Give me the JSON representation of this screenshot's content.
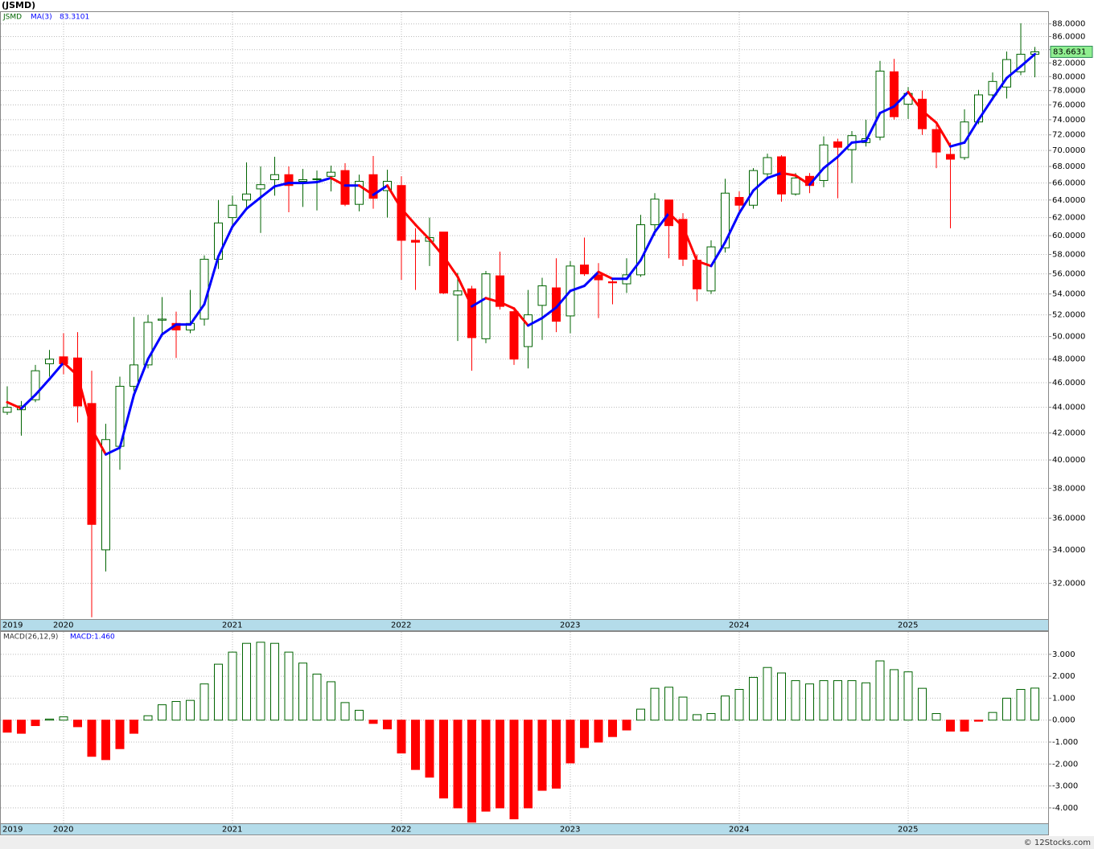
{
  "chart_data": [
    {
      "type": "candlestick",
      "title": "(JSMD)",
      "symbol": "JSMD",
      "categories": [
        "2019",
        null,
        null,
        null,
        "2020",
        null,
        null,
        null,
        null,
        null,
        null,
        null,
        null,
        null,
        null,
        null,
        "2021",
        null,
        null,
        null,
        null,
        null,
        null,
        null,
        null,
        null,
        null,
        null,
        "2022",
        null,
        null,
        null,
        null,
        null,
        null,
        null,
        null,
        null,
        null,
        null,
        "2023",
        null,
        null,
        null,
        null,
        null,
        null,
        null,
        null,
        null,
        null,
        null,
        "2024",
        null,
        null,
        null,
        null,
        null,
        null,
        null,
        null,
        null,
        null,
        null,
        "2025",
        null,
        null,
        null,
        null,
        null,
        null,
        null,
        null,
        null
      ],
      "open": [
        43.6,
        43.8,
        44.6,
        47.6,
        48.2,
        48.1,
        44.3,
        34.0,
        41.0,
        45.7,
        47.5,
        51.5,
        51.2,
        50.6,
        51.6,
        57.5,
        62.0,
        64.0,
        65.3,
        66.4,
        67.0,
        66.2,
        66.4,
        66.8,
        67.5,
        63.5,
        67.0,
        65.1,
        65.7,
        59.5,
        59.4,
        60.4,
        53.9,
        54.5,
        49.8,
        55.8,
        52.3,
        49.1,
        52.9,
        54.6,
        51.9,
        56.9,
        55.9,
        55.2,
        55.0,
        55.9,
        61.2,
        64.0,
        61.8,
        57.4,
        54.3,
        58.7,
        64.3,
        63.4,
        67.1,
        69.2,
        64.7,
        66.8,
        66.3,
        71.1,
        70.1,
        71.0,
        71.7,
        80.7,
        76.1,
        76.8,
        72.7,
        69.5,
        69.1,
        73.7,
        77.4,
        78.5,
        80.7,
        83.3
      ],
      "high": [
        45.7,
        44.5,
        47.5,
        48.8,
        50.3,
        50.4,
        47.0,
        42.7,
        46.5,
        51.8,
        52.0,
        53.7,
        52.3,
        54.4,
        57.9,
        64.0,
        64.5,
        68.5,
        68.0,
        69.2,
        68.0,
        67.7,
        67.5,
        68.1,
        68.4,
        67.0,
        69.3,
        67.6,
        66.8,
        60.8,
        62.0,
        60.4,
        56.1,
        54.8,
        56.3,
        58.3,
        52.6,
        54.4,
        55.6,
        57.6,
        57.3,
        59.8,
        57.1,
        55.6,
        57.6,
        62.3,
        64.8,
        64.0,
        62.5,
        58.0,
        59.5,
        66.5,
        65.0,
        67.8,
        69.6,
        69.4,
        67.2,
        67.2,
        71.8,
        71.5,
        72.5,
        74.0,
        82.3,
        82.6,
        78.5,
        78.0,
        73.3,
        71.0,
        75.4,
        78.1,
        80.6,
        83.7,
        88.1,
        84.4
      ],
      "low": [
        43.4,
        41.8,
        44.4,
        46.5,
        46.7,
        42.8,
        30.1,
        32.7,
        39.3,
        45.3,
        47.2,
        50.2,
        48.1,
        50.3,
        51.0,
        56.5,
        60.8,
        62.9,
        60.3,
        64.5,
        62.6,
        63.2,
        62.8,
        65.0,
        63.3,
        62.7,
        63.0,
        62.0,
        55.4,
        54.4,
        56.8,
        54.0,
        49.6,
        47.0,
        49.4,
        52.5,
        47.5,
        47.2,
        49.7,
        50.4,
        50.3,
        55.8,
        51.7,
        53.0,
        54.1,
        55.7,
        60.0,
        57.6,
        56.8,
        53.3,
        54.0,
        58.2,
        62.6,
        63.0,
        66.6,
        63.8,
        64.5,
        64.8,
        65.5,
        64.2,
        66.0,
        70.5,
        71.3,
        74.0,
        74.1,
        72.0,
        67.8,
        60.8,
        68.8,
        73.4,
        76.6,
        76.9,
        80.2,
        79.9
      ],
      "close": [
        44.0,
        44.1,
        47.0,
        48.0,
        47.6,
        44.1,
        35.6,
        41.5,
        45.7,
        47.5,
        51.3,
        51.6,
        50.6,
        51.2,
        57.5,
        61.4,
        63.4,
        64.7,
        65.8,
        67.0,
        65.7,
        66.4,
        66.5,
        67.3,
        63.5,
        66.2,
        64.2,
        66.2,
        59.5,
        59.3,
        59.8,
        54.1,
        54.3,
        49.9,
        56.0,
        52.8,
        48.0,
        52.0,
        54.8,
        51.4,
        56.8,
        56.0,
        55.4,
        55.1,
        55.9,
        61.2,
        64.1,
        61.1,
        57.5,
        54.5,
        58.8,
        64.8,
        63.4,
        67.5,
        69.1,
        64.7,
        66.6,
        65.7,
        70.7,
        70.4,
        71.9,
        71.5,
        80.8,
        74.4,
        77.6,
        72.8,
        69.8,
        68.9,
        73.7,
        77.4,
        79.3,
        82.5,
        83.3,
        83.6631
      ],
      "up_color": "#006400",
      "down_color": "#ff0000",
      "overlay": {
        "name": "MA(3)",
        "up_color": "#0000ff",
        "down_color": "#ff0000",
        "values": [
          44.4,
          43.9,
          45.0,
          46.3,
          47.7,
          46.6,
          42.3,
          40.4,
          40.9,
          45.0,
          48.0,
          50.2,
          51.1,
          51.1,
          53.0,
          57.8,
          61.0,
          63.0,
          64.3,
          65.6,
          66.0,
          66.0,
          66.1,
          66.6,
          65.7,
          65.7,
          64.6,
          65.7,
          63.0,
          61.2,
          59.6,
          57.8,
          55.7,
          52.8,
          53.6,
          53.2,
          52.6,
          51.0,
          51.7,
          52.7,
          54.3,
          54.8,
          56.2,
          55.5,
          55.5,
          57.4,
          60.4,
          62.5,
          61.0,
          57.3,
          56.8,
          59.3,
          62.5,
          65.1,
          66.6,
          67.2,
          66.9,
          65.8,
          67.8,
          69.2,
          71.0,
          71.2,
          74.9,
          75.8,
          77.8,
          75.2,
          73.6,
          70.5,
          71.0,
          74.0,
          76.9,
          79.8,
          81.5,
          83.3101
        ]
      },
      "log_scale": true,
      "grid": true,
      "ylim": [
        30.0,
        89.9
      ],
      "yticks": [
        {
          "value": 32,
          "label": "32.0000"
        },
        {
          "value": 34,
          "label": "34.0000"
        },
        {
          "value": 36,
          "label": "36.0000"
        },
        {
          "value": 38,
          "label": "38.0000"
        },
        {
          "value": 40,
          "label": "40.0000"
        },
        {
          "value": 42,
          "label": "42.0000"
        },
        {
          "value": 44,
          "label": "44.0000"
        },
        {
          "value": 46,
          "label": "46.0000"
        },
        {
          "value": 48,
          "label": "48.0000"
        },
        {
          "value": 50,
          "label": "50.0000"
        },
        {
          "value": 52,
          "label": "52.0000"
        },
        {
          "value": 54,
          "label": "54.0000"
        },
        {
          "value": 56,
          "label": "56.0000"
        },
        {
          "value": 58,
          "label": "58.0000"
        },
        {
          "value": 60,
          "label": "60.0000"
        },
        {
          "value": 62,
          "label": "62.0000"
        },
        {
          "value": 64,
          "label": "64.0000"
        },
        {
          "value": 66,
          "label": "66.0000"
        },
        {
          "value": 68,
          "label": "68.0000"
        },
        {
          "value": 70,
          "label": "70.0000"
        },
        {
          "value": 72,
          "label": "72.0000"
        },
        {
          "value": 74,
          "label": "74.0000"
        },
        {
          "value": 76,
          "label": "76.0000"
        },
        {
          "value": 78,
          "label": "78.0000"
        },
        {
          "value": 80,
          "label": "80.0000"
        },
        {
          "value": 82,
          "label": "82.0000"
        },
        {
          "value": 84,
          "label": "84.0000"
        },
        {
          "value": 86,
          "label": "86.0000"
        },
        {
          "value": 88,
          "label": "88.0000"
        }
      ]
    },
    {
      "type": "bar",
      "name": "MACD(26,12,9)",
      "value_label": "MACD:1.460",
      "values": [
        -0.55,
        -0.6,
        -0.25,
        0.05,
        0.15,
        -0.3,
        -1.65,
        -1.8,
        -1.3,
        -0.6,
        0.2,
        0.7,
        0.85,
        0.9,
        1.65,
        2.55,
        3.1,
        3.5,
        3.55,
        3.5,
        3.1,
        2.6,
        2.1,
        1.75,
        0.8,
        0.45,
        -0.15,
        -0.4,
        -1.5,
        -2.25,
        -2.6,
        -3.55,
        -4.0,
        -4.65,
        -4.15,
        -4.0,
        -4.5,
        -4.0,
        -3.2,
        -3.1,
        -1.95,
        -1.25,
        -1.0,
        -0.75,
        -0.45,
        0.5,
        1.45,
        1.5,
        1.05,
        0.25,
        0.3,
        1.1,
        1.4,
        1.95,
        2.4,
        2.15,
        1.8,
        1.65,
        1.8,
        1.8,
        1.8,
        1.7,
        2.7,
        2.3,
        2.2,
        1.45,
        0.3,
        -0.5,
        -0.5,
        -0.05,
        0.35,
        1.0,
        1.4,
        1.46
      ],
      "pos_color": "#006400",
      "neg_color": "#ff0000",
      "grid": true,
      "ylim": [
        -4.7,
        4.02
      ],
      "yticks": [
        {
          "value": -4,
          "label": "-4.000"
        },
        {
          "value": -3,
          "label": "-3.000"
        },
        {
          "value": -2,
          "label": "-2.000"
        },
        {
          "value": -1,
          "label": "-1.000"
        },
        {
          "value": 0,
          "label": "0.000"
        },
        {
          "value": 1,
          "label": "1.000"
        },
        {
          "value": 2,
          "label": "2.000"
        },
        {
          "value": 3,
          "label": "3.000"
        }
      ]
    }
  ],
  "footer": "© 12Stocks.com"
}
